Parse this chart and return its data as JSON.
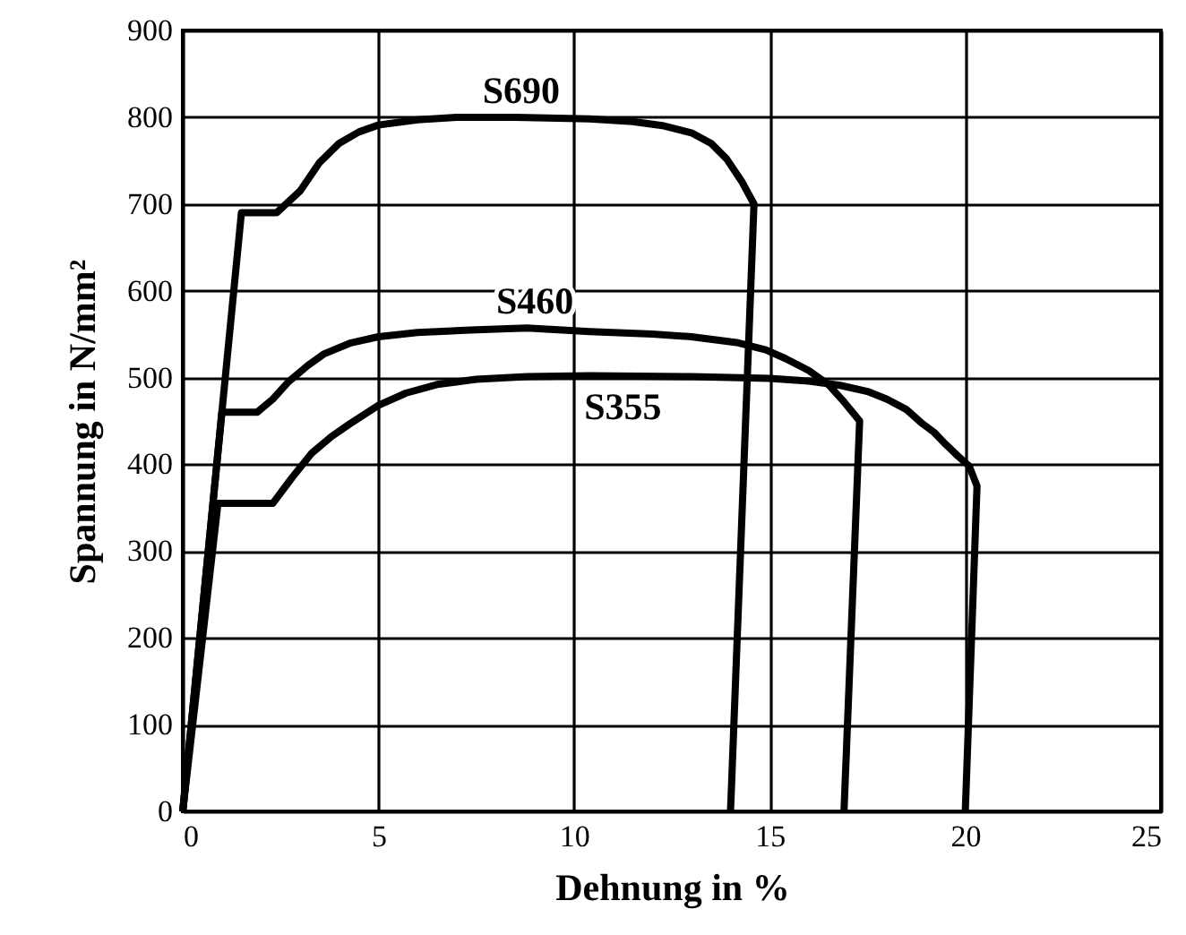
{
  "chart_data": {
    "type": "line",
    "xlabel": "Dehnung in %",
    "ylabel": "Spannung in N/mm²",
    "xlim": [
      0,
      25
    ],
    "ylim": [
      0,
      900
    ],
    "xticks": [
      0,
      5,
      10,
      15,
      20,
      25
    ],
    "yticks": [
      0,
      100,
      200,
      300,
      400,
      500,
      600,
      700,
      800,
      900
    ],
    "grid": true,
    "series": [
      {
        "name": "S690",
        "color": "#000000",
        "x": [
          0,
          1.5,
          2.4,
          3.0,
          3.5,
          4.0,
          4.5,
          5.0,
          6.0,
          7.0,
          8.5,
          10.4,
          11.5,
          12.3,
          13.0,
          13.5,
          13.9,
          14.3,
          14.6,
          14.0
        ],
        "values": [
          0,
          690,
          690,
          715,
          748,
          770,
          783,
          791,
          797,
          800,
          800,
          798,
          795,
          790,
          782,
          770,
          752,
          725,
          700,
          0
        ]
      },
      {
        "name": "S460",
        "color": "#000000",
        "x": [
          0,
          1.0,
          1.9,
          2.3,
          2.7,
          3.2,
          3.6,
          4.3,
          5.0,
          6.0,
          7.5,
          8.8,
          10.4,
          12.0,
          13.0,
          14.2,
          14.9,
          15.4,
          16.0,
          16.5,
          16.9,
          17.3,
          16.9
        ],
        "values": [
          0,
          460,
          460,
          475,
          495,
          514,
          527,
          540,
          547,
          552,
          555,
          557,
          553,
          550,
          547,
          540,
          532,
          522,
          508,
          492,
          472,
          450,
          0
        ]
      },
      {
        "name": "S355",
        "color": "#000000",
        "x": [
          0,
          0.9,
          2.3,
          2.8,
          3.3,
          3.8,
          4.25,
          5.0,
          5.7,
          6.5,
          7.5,
          8.8,
          10.4,
          13.0,
          15.0,
          16.0,
          16.8,
          17.5,
          18.0,
          18.5,
          18.9,
          19.2,
          19.5,
          19.8,
          20.1,
          20.3,
          20.0
        ],
        "values": [
          0,
          355,
          355,
          385,
          413,
          432,
          446,
          468,
          482,
          492,
          498,
          501,
          502,
          501,
          499,
          496,
          491,
          484,
          475,
          463,
          447,
          437,
          423,
          410,
          398,
          375,
          0
        ]
      }
    ]
  }
}
